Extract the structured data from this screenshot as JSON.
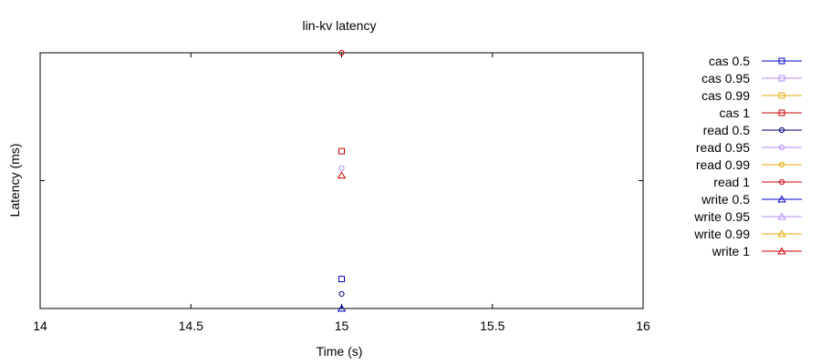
{
  "chart_data": {
    "type": "scatter",
    "title": "lin-kv latency",
    "xlabel": "Time (s)",
    "ylabel": "Latency (ms)",
    "xlim": [
      14,
      16
    ],
    "x_ticks": [
      "14",
      "14.5",
      "15",
      "15.5",
      "16"
    ],
    "y_scale": "log",
    "grid": false,
    "legend_position": "right",
    "series": [
      {
        "name": "cas 0.5",
        "marker": "square",
        "color": "#0000cc",
        "points": [
          {
            "x": 15,
            "y": 0.17
          }
        ]
      },
      {
        "name": "cas 0.95",
        "marker": "square",
        "color": "#b388ff",
        "points": []
      },
      {
        "name": "cas 0.99",
        "marker": "square",
        "color": "#e6a800",
        "points": []
      },
      {
        "name": "cas 1",
        "marker": "square",
        "color": "#cc0000",
        "points": [
          {
            "x": 15,
            "y": 1.7
          }
        ]
      },
      {
        "name": "read 0.5",
        "marker": "circle",
        "color": "#000080",
        "points": [
          {
            "x": 15,
            "y": 0.13
          }
        ]
      },
      {
        "name": "read 0.95",
        "marker": "circle",
        "color": "#b388ff",
        "points": [
          {
            "x": 15,
            "y": 1.25
          }
        ]
      },
      {
        "name": "read 0.99",
        "marker": "circle",
        "color": "#e6a800",
        "points": []
      },
      {
        "name": "read 1",
        "marker": "circle",
        "color": "#cc0000",
        "points": [
          {
            "x": 15,
            "y": 10
          }
        ]
      },
      {
        "name": "write 0.5",
        "marker": "triangle",
        "color": "#0000cc",
        "points": [
          {
            "x": 15,
            "y": 0.1
          }
        ]
      },
      {
        "name": "write 0.95",
        "marker": "triangle",
        "color": "#b388ff",
        "points": []
      },
      {
        "name": "write 0.99",
        "marker": "triangle",
        "color": "#e6a800",
        "points": []
      },
      {
        "name": "write 1",
        "marker": "triangle",
        "color": "#cc0000",
        "points": [
          {
            "x": 15,
            "y": 1.1
          }
        ]
      }
    ]
  }
}
